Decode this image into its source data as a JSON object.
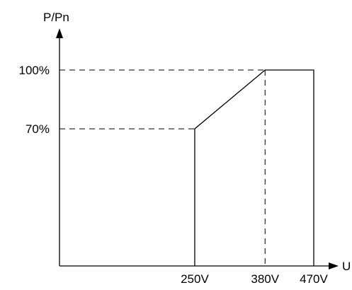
{
  "chart_data": {
    "type": "line",
    "xlabel": "U",
    "ylabel": "P/Pn",
    "x_ticks": [
      {
        "value": 250,
        "label": "250V"
      },
      {
        "value": 380,
        "label": "380V"
      },
      {
        "value": 470,
        "label": "470V"
      }
    ],
    "y_ticks": [
      {
        "value": 70,
        "label": "70%"
      },
      {
        "value": 100,
        "label": "100%"
      }
    ],
    "series": [
      {
        "points": [
          {
            "x": 250,
            "y": 0
          },
          {
            "x": 250,
            "y": 70
          },
          {
            "x": 380,
            "y": 100
          },
          {
            "x": 470,
            "y": 100
          },
          {
            "x": 470,
            "y": 0
          }
        ]
      }
    ],
    "guides": [
      {
        "x": 250,
        "y": 70
      },
      {
        "x": 380,
        "y": 100
      }
    ],
    "xlim": [
      0,
      470
    ],
    "ylim": [
      0,
      100
    ],
    "grid": false,
    "colors": {
      "line": "#000000",
      "guide": "#000000"
    }
  }
}
